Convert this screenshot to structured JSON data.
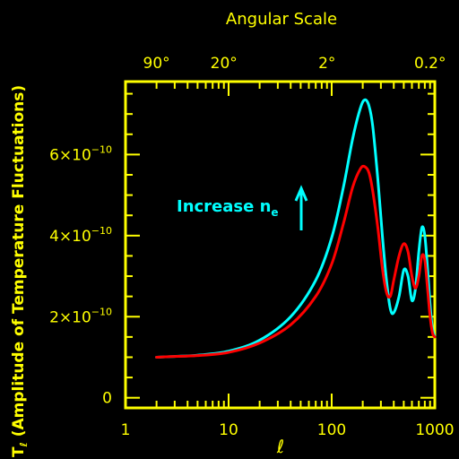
{
  "colors": {
    "background": "#000000",
    "axis": "#ffff00",
    "series_cyan": "#00ffff",
    "series_red": "#ff0000"
  },
  "chart_data": {
    "type": "line",
    "xlabel": "ℓ",
    "ylabel_main": "T",
    "ylabel_sub": "ℓ",
    "ylabel_rest": " (Amplitude of Temperature Fluctuations)",
    "top_axis_title": "Angular Scale",
    "x_scale": "log",
    "xlim": [
      1,
      1000
    ],
    "ylim": [
      -2.5e-11,
      7.8e-10
    ],
    "x_ticks": [
      {
        "value": 1,
        "label": "1"
      },
      {
        "value": 10,
        "label": "10"
      },
      {
        "value": 100,
        "label": "100"
      },
      {
        "value": 1000,
        "label": "1000"
      }
    ],
    "y_ticks": [
      {
        "value": 0,
        "label": "0",
        "mantissa": "0",
        "exponent": ""
      },
      {
        "value": 2e-10,
        "label": "2×10⁻¹⁰",
        "mantissa": "2×10",
        "exponent": "−10"
      },
      {
        "value": 4e-10,
        "label": "4×10⁻¹⁰",
        "mantissa": "4×10",
        "exponent": "−10"
      },
      {
        "value": 6e-10,
        "label": "6×10⁻¹⁰",
        "mantissa": "6×10",
        "exponent": "−10"
      }
    ],
    "top_ticks": [
      {
        "label": "90°",
        "ell": 2
      },
      {
        "label": "20°",
        "ell": 9
      },
      {
        "label": "2°",
        "ell": 90
      },
      {
        "label": "0.2°",
        "ell": 900
      }
    ],
    "annotation": {
      "text": "Increase n",
      "subscript": "e",
      "arrow": "up",
      "color": "#00ffff",
      "x": 10.5,
      "y": 4.7e-10
    },
    "series": [
      {
        "color": "#00ffff",
        "x": [
          2,
          3,
          5,
          10,
          20,
          40,
          70,
          100,
          130,
          160,
          190,
          210,
          230,
          250,
          280,
          310,
          340,
          370,
          400,
          450,
          500,
          550,
          600,
          650,
          700,
          750,
          800,
          850,
          900,
          950,
          1000
        ],
        "y": [
          1e-10,
          1.02e-10,
          1.05e-10,
          1.15e-10,
          1.42e-10,
          2e-10,
          2.9e-10,
          3.95e-10,
          5.2e-10,
          6.4e-10,
          7.15e-10,
          7.35e-10,
          7.2e-10,
          6.7e-10,
          5.4e-10,
          4e-10,
          2.9e-10,
          2.2e-10,
          2.1e-10,
          2.5e-10,
          3.15e-10,
          3e-10,
          2.4e-10,
          2.7e-10,
          3.6e-10,
          4.2e-10,
          4e-10,
          3.2e-10,
          2.3e-10,
          1.7e-10,
          1.5e-10
        ]
      },
      {
        "color": "#ff0000",
        "x": [
          2,
          3,
          5,
          10,
          20,
          40,
          70,
          100,
          130,
          160,
          190,
          210,
          230,
          250,
          280,
          310,
          340,
          370,
          400,
          450,
          500,
          550,
          600,
          650,
          700,
          750,
          800,
          850,
          900,
          950,
          1000
        ],
        "y": [
          1e-10,
          1.02e-10,
          1.04e-10,
          1.12e-10,
          1.35e-10,
          1.8e-10,
          2.5e-10,
          3.3e-10,
          4.3e-10,
          5.2e-10,
          5.65e-10,
          5.7e-10,
          5.55e-10,
          5.1e-10,
          4.2e-10,
          3.2e-10,
          2.6e-10,
          2.5e-10,
          2.9e-10,
          3.5e-10,
          3.8e-10,
          3.6e-10,
          3e-10,
          2.7e-10,
          3e-10,
          3.5e-10,
          3.4e-10,
          2.7e-10,
          2e-10,
          1.6e-10,
          1.5e-10
        ]
      }
    ]
  }
}
